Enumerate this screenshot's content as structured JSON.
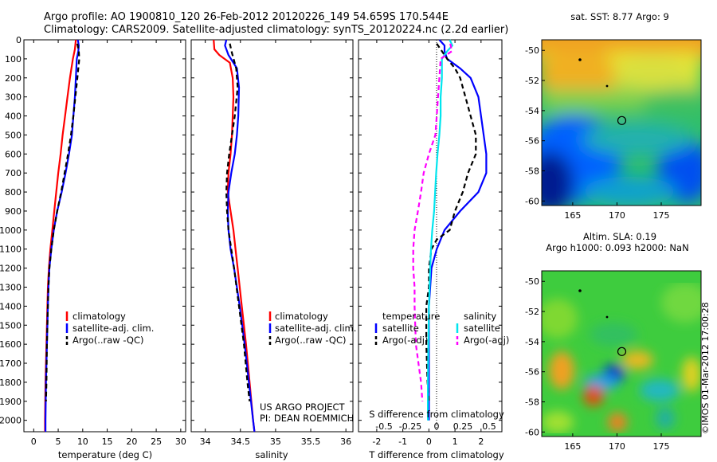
{
  "header": {
    "line1": "Argo profile: AO 1900810_120 26-Feb-2012 20120226_149 54.659S 170.544E",
    "line2": "Climatology: CARS2009. Satellite-adjusted climatology: synTS_20120224.nc (2.2d earlier)"
  },
  "colors": {
    "climatology": "#ff0000",
    "satellite": "#0000ff",
    "argo": "#000000",
    "sal_satellite": "#00e5ee",
    "sal_argo": "#ff00ff"
  },
  "chart_data": [
    {
      "type": "line",
      "xlabel": "temperature (deg C)",
      "ylabel": "",
      "xlim": [
        -2,
        31
      ],
      "ylim": [
        0,
        2060
      ],
      "xticks": [
        "0",
        "5",
        "10",
        "15",
        "20",
        "25",
        "30"
      ],
      "xtick_values": [
        0,
        5,
        10,
        15,
        20,
        25,
        30
      ],
      "yticks": [
        "0",
        "100",
        "200",
        "300",
        "400",
        "500",
        "600",
        "700",
        "800",
        "900",
        "1000",
        "1100",
        "1200",
        "1300",
        "1400",
        "1500",
        "1600",
        "1700",
        "1800",
        "1900",
        "2000"
      ],
      "ytick_values": [
        0,
        100,
        200,
        300,
        400,
        500,
        600,
        700,
        800,
        900,
        1000,
        1100,
        1200,
        1300,
        1400,
        1500,
        1600,
        1700,
        1800,
        1900,
        2000
      ],
      "legend": [
        "climatology",
        "satellite-adj. clim.",
        "Argo(..raw -QC)"
      ],
      "series": [
        {
          "name": "climatology",
          "color": "#ff0000",
          "dash": "",
          "depth": [
            0,
            50,
            100,
            200,
            300,
            400,
            500,
            600,
            700,
            800,
            900,
            1000,
            1100,
            1200,
            1300,
            1400,
            1600,
            1800,
            2000,
            2060
          ],
          "values": [
            8.6,
            8.4,
            8.0,
            7.4,
            6.9,
            6.4,
            5.9,
            5.5,
            5.0,
            4.6,
            4.2,
            3.8,
            3.4,
            3.1,
            2.9,
            2.8,
            2.6,
            2.4,
            2.3,
            2.3
          ]
        },
        {
          "name": "satellite-adj. clim.",
          "color": "#0000ff",
          "dash": "",
          "depth": [
            0,
            30,
            60,
            100,
            200,
            300,
            400,
            500,
            600,
            700,
            800,
            900,
            1000,
            1100,
            1200,
            1300,
            1400,
            1600,
            1800,
            2000,
            2060
          ],
          "values": [
            9.0,
            9.2,
            9.1,
            8.8,
            8.6,
            8.4,
            8.1,
            7.8,
            7.2,
            6.5,
            5.7,
            4.8,
            4.1,
            3.6,
            3.2,
            3.0,
            2.9,
            2.7,
            2.5,
            2.4,
            2.4
          ]
        },
        {
          "name": "Argo(..raw -QC)",
          "color": "#000000",
          "dash": "6,4",
          "depth": [
            20,
            60,
            100,
            200,
            300,
            400,
            500,
            600,
            700,
            800,
            900,
            1000,
            1100,
            1200,
            1300,
            1400,
            1600,
            1800,
            1900
          ],
          "values": [
            8.9,
            9.2,
            9.3,
            8.9,
            8.5,
            8.1,
            7.6,
            7.0,
            6.3,
            5.6,
            4.8,
            4.1,
            3.6,
            3.2,
            3.0,
            2.9,
            2.7,
            2.6,
            2.5
          ]
        }
      ]
    },
    {
      "type": "line",
      "xlabel": "salinity",
      "ylabel": "",
      "xlim": [
        33.8,
        36.1
      ],
      "ylim": [
        0,
        2060
      ],
      "xticks": [
        "34",
        "34.5",
        "35",
        "35.5",
        "36"
      ],
      "xtick_values": [
        34,
        34.5,
        35,
        35.5,
        36
      ],
      "legend": [
        "climatology",
        "satellite-adj. clim.",
        "Argo(..raw -QC)"
      ],
      "series": [
        {
          "name": "climatology",
          "color": "#ff0000",
          "dash": "",
          "depth": [
            0,
            50,
            80,
            120,
            200,
            300,
            400,
            500,
            600,
            700,
            800,
            900,
            1000,
            1100,
            1200,
            1400,
            1600,
            1800,
            2000,
            2060
          ],
          "values": [
            34.12,
            34.13,
            34.2,
            34.35,
            34.39,
            34.4,
            34.39,
            34.38,
            34.36,
            34.33,
            34.32,
            34.36,
            34.4,
            34.43,
            34.46,
            34.52,
            34.58,
            34.63,
            34.68,
            34.7
          ]
        },
        {
          "name": "satellite-adj. clim.",
          "color": "#0000ff",
          "dash": "",
          "depth": [
            0,
            30,
            80,
            150,
            250,
            400,
            500,
            600,
            700,
            800,
            900,
            1000,
            1100,
            1200,
            1400,
            1600,
            1800,
            2000,
            2060
          ],
          "values": [
            34.3,
            34.28,
            34.33,
            34.45,
            34.48,
            34.47,
            34.45,
            34.42,
            34.37,
            34.33,
            34.32,
            34.33,
            34.36,
            34.41,
            34.49,
            34.56,
            34.62,
            34.68,
            34.7
          ]
        },
        {
          "name": "Argo(..raw -QC)",
          "color": "#000000",
          "dash": "6,4",
          "depth": [
            20,
            70,
            150,
            250,
            400,
            500,
            600,
            700,
            800,
            900,
            1000,
            1100,
            1200,
            1400,
            1600,
            1800,
            1900
          ],
          "values": [
            34.35,
            34.38,
            34.44,
            34.46,
            34.42,
            34.38,
            34.34,
            34.31,
            34.3,
            34.31,
            34.33,
            34.37,
            34.41,
            34.48,
            34.55,
            34.6,
            34.63
          ]
        }
      ]
    },
    {
      "type": "line",
      "xlabel": "T difference from climatology",
      "x2label": "S difference from climatology",
      "xlim": [
        -2.7,
        2.8
      ],
      "ylim": [
        0,
        2060
      ],
      "xticks": [
        "-2",
        "-1",
        "0",
        "1",
        "2"
      ],
      "xtick_values": [
        -2,
        -1,
        0,
        1,
        2
      ],
      "x2ticks": [
        "-0.5",
        "-0.25",
        "0",
        "0.25",
        "0.5"
      ],
      "legend_temperature": "temperature",
      "legend_salinity": "salinity",
      "legend": [
        "satellite",
        "Argo(-adj)",
        "satellite",
        "Argo(-adj)"
      ],
      "series": [
        {
          "name": "satellite",
          "color": "#0000ff",
          "dash": "",
          "depth": [
            0,
            30,
            60,
            100,
            150,
            200,
            300,
            400,
            500,
            600,
            700,
            800,
            900,
            1000,
            1100,
            1200,
            1300,
            1400,
            1500,
            1600,
            1800,
            2000
          ],
          "values": [
            0.4,
            0.6,
            0.6,
            0.7,
            1.2,
            1.6,
            1.9,
            2.0,
            2.1,
            2.2,
            2.2,
            1.9,
            1.2,
            0.6,
            0.3,
            0.1,
            0.05,
            0.0,
            0.0,
            0.0,
            0.0,
            0.0
          ]
        },
        {
          "name": "Argo(-adj)",
          "color": "#000000",
          "dash": "6,4",
          "depth": [
            20,
            60,
            100,
            150,
            200,
            300,
            400,
            500,
            600,
            700,
            800,
            900,
            1000,
            1050,
            1100,
            1200,
            1300,
            1400,
            1600,
            1800,
            1900
          ],
          "values": [
            0.3,
            0.5,
            0.7,
            1.0,
            1.2,
            1.4,
            1.6,
            1.8,
            1.8,
            1.5,
            1.3,
            1.0,
            0.8,
            0.3,
            0.1,
            0.0,
            0.0,
            -0.1,
            -0.1,
            -0.05,
            0.0
          ]
        },
        {
          "name": "satellite",
          "color": "#00e5ee",
          "dash": "",
          "depth": [
            0,
            30,
            60,
            100,
            200,
            300,
            400,
            500,
            600,
            700,
            800,
            900,
            1000,
            1100,
            1200,
            1400,
            1600,
            1800,
            1900,
            2000
          ],
          "values": [
            0.8,
            0.9,
            0.7,
            0.5,
            0.5,
            0.45,
            0.45,
            0.4,
            0.33,
            0.28,
            0.24,
            0.2,
            0.13,
            0.08,
            0.05,
            0.0,
            -0.02,
            -0.04,
            -0.04,
            -0.04
          ]
        },
        {
          "name": "Argo(-adj)",
          "color": "#ff00ff",
          "dash": "6,4",
          "depth": [
            20,
            60,
            100,
            200,
            300,
            400,
            500,
            600,
            700,
            800,
            900,
            1000,
            1100,
            1200,
            1300,
            1400,
            1600,
            1800,
            1900
          ],
          "values": [
            0.82,
            0.88,
            0.45,
            0.4,
            0.35,
            0.3,
            0.25,
            0.0,
            -0.2,
            -0.3,
            -0.42,
            -0.55,
            -0.6,
            -0.6,
            -0.55,
            -0.55,
            -0.5,
            -0.3,
            -0.25
          ]
        }
      ]
    },
    {
      "type": "heatmap",
      "title": "sat. SST: 8.77 Argo: 9",
      "xlim": [
        161.5,
        179.5
      ],
      "ylim": [
        -60.3,
        -49.3
      ],
      "xticks": [
        "165",
        "170",
        "175"
      ],
      "xtick_values": [
        165,
        170,
        175
      ],
      "yticks": [
        "-50",
        "-52",
        "-54",
        "-56",
        "-58",
        "-60"
      ],
      "ytick_values": [
        -50,
        -52,
        -54,
        -56,
        -58,
        -60
      ],
      "marker": {
        "lon": 170.544,
        "lat": -54.659
      }
    },
    {
      "type": "heatmap",
      "title": "Altim. SLA: 0.19",
      "subtitle": "Argo h1000: 0.093 h2000: NaN",
      "xlim": [
        161.5,
        179.5
      ],
      "ylim": [
        -60.3,
        -49.3
      ],
      "xticks": [
        "165",
        "170",
        "175"
      ],
      "xtick_values": [
        165,
        170,
        175
      ],
      "yticks": [
        "-50",
        "-52",
        "-54",
        "-56",
        "-58",
        "-60"
      ],
      "ytick_values": [
        -50,
        -52,
        -54,
        -56,
        -58,
        -60
      ],
      "marker": {
        "lon": 170.544,
        "lat": -54.659
      }
    }
  ],
  "project": {
    "line1": "US ARGO PROJECT",
    "line2": "PI: DEAN ROEMMICH"
  },
  "credit": "©IMOS 01-Mar-2012 17:00:28"
}
